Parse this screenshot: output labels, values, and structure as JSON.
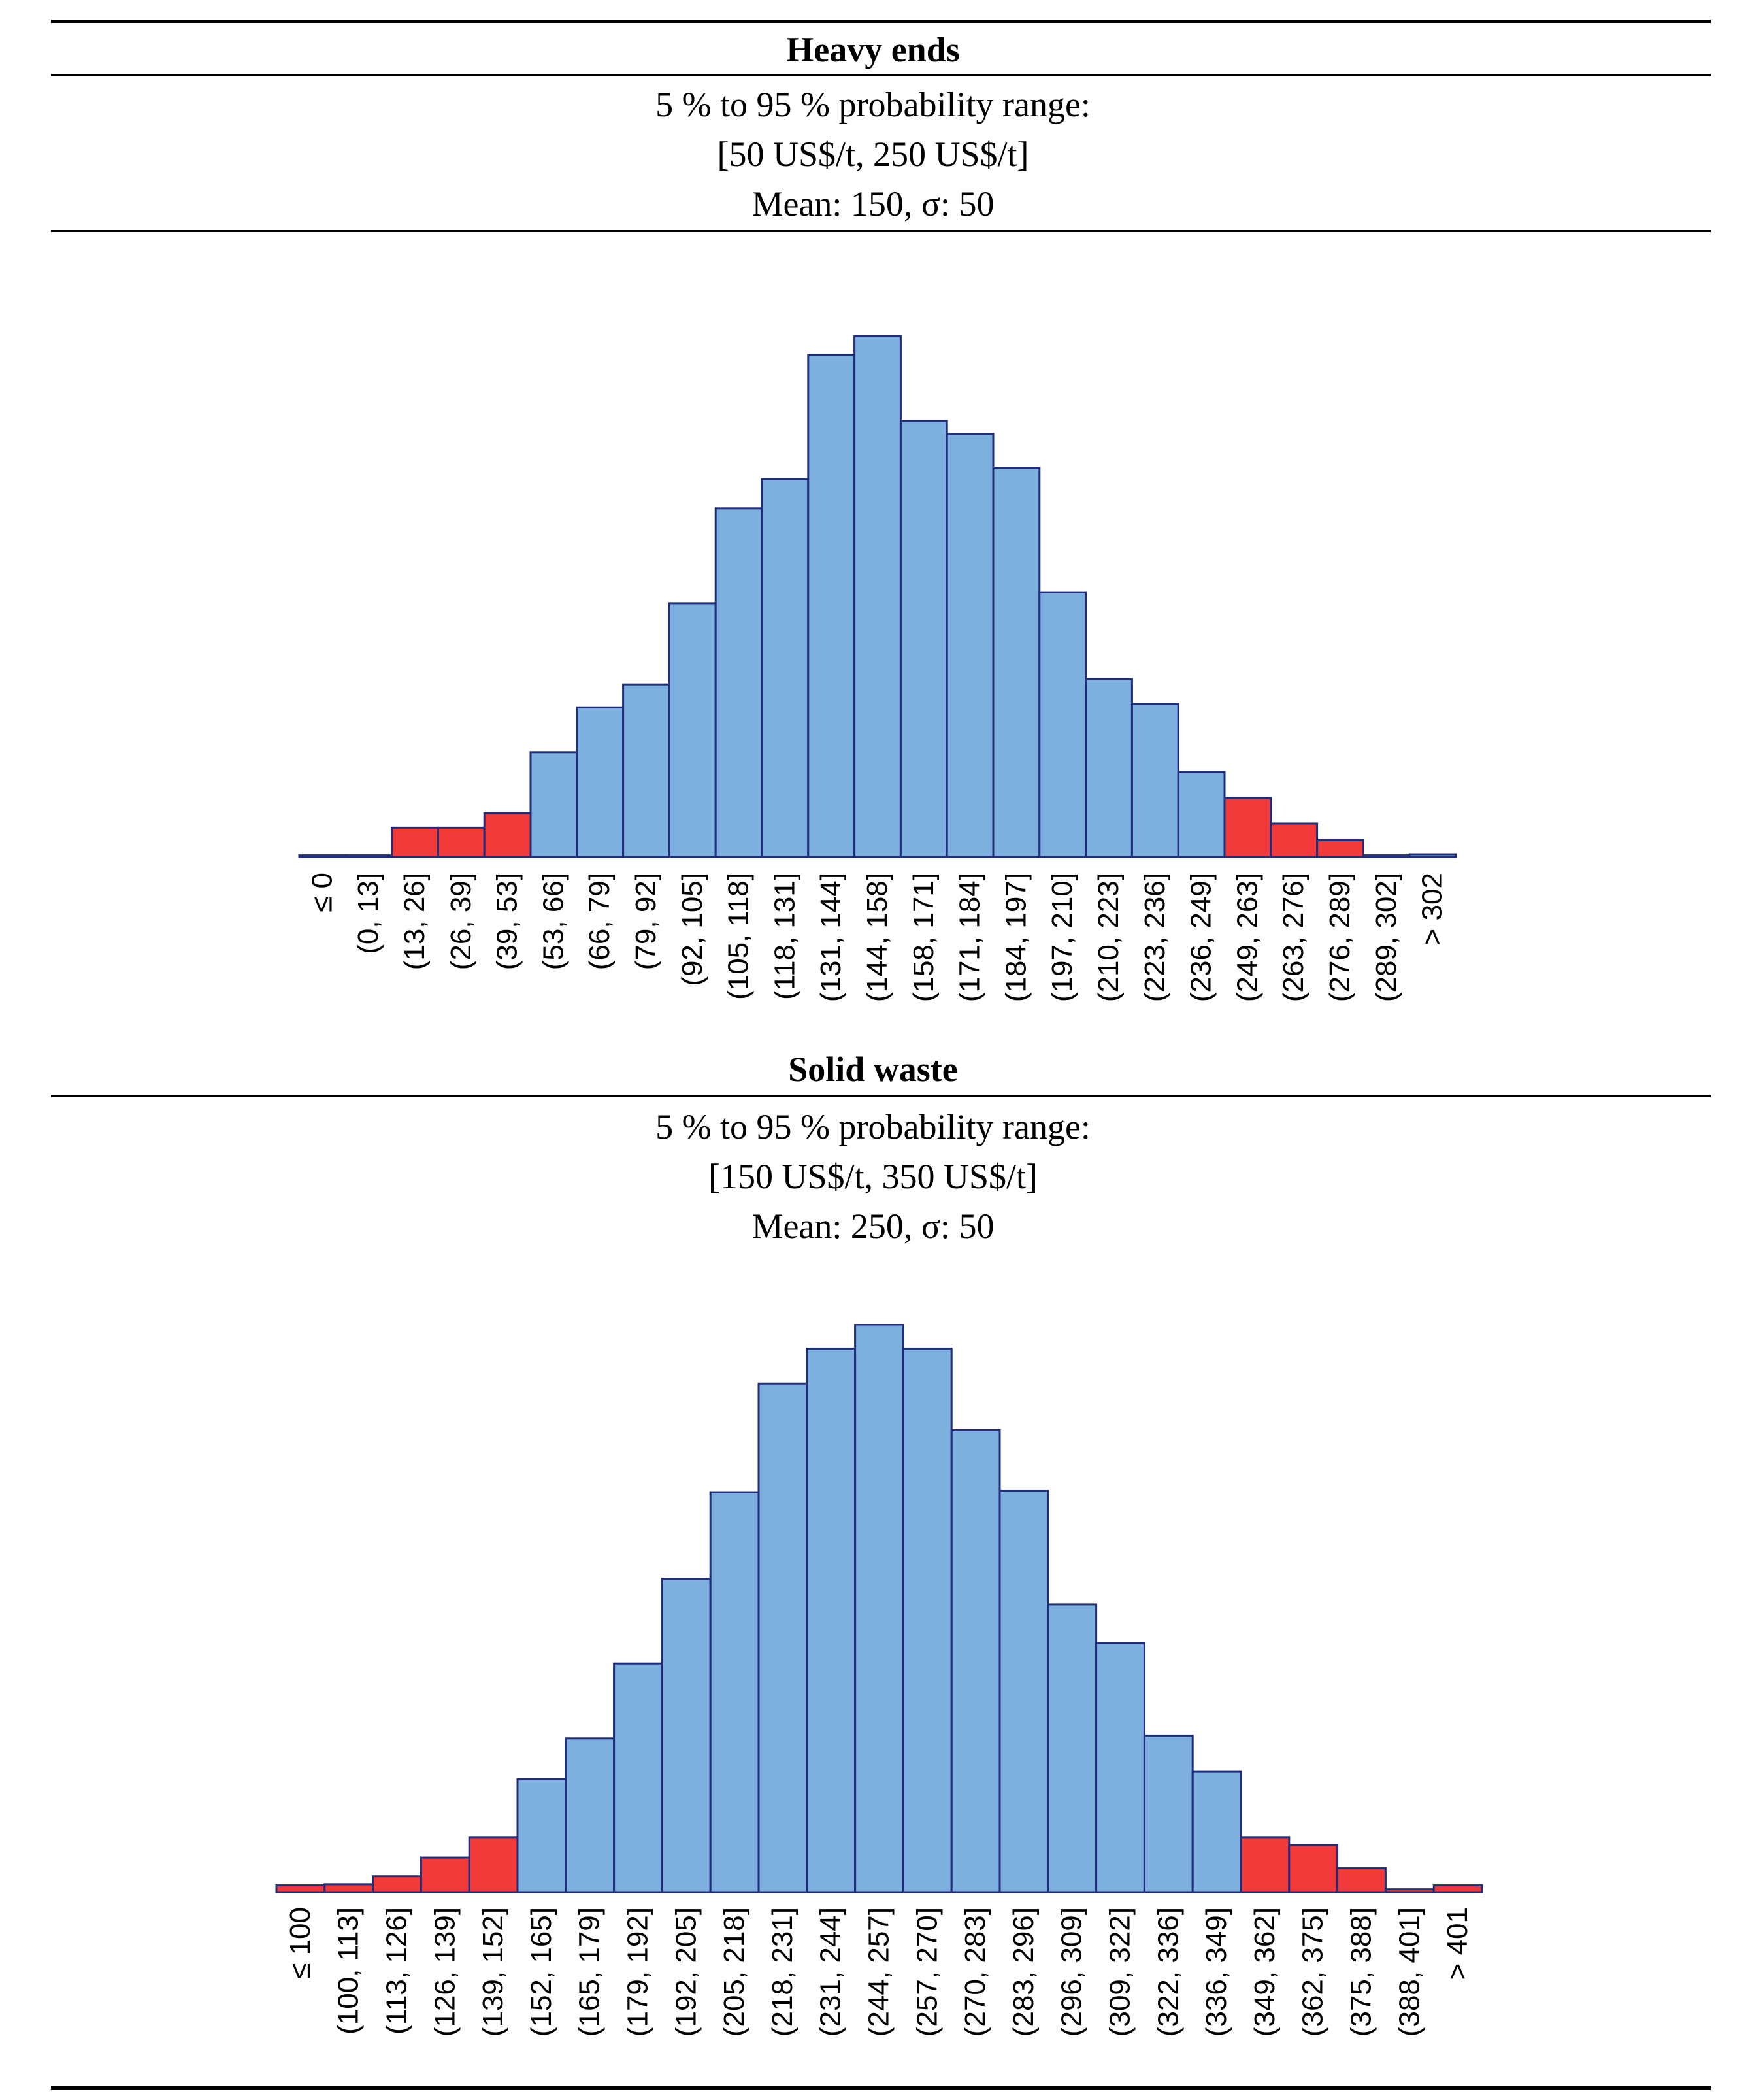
{
  "colors": {
    "inside": "#7eb0df",
    "tail": "#f23a3a",
    "outline": "#1f2d7a"
  },
  "chart_data": [
    {
      "type": "bar",
      "title": "Heavy ends",
      "range_label": "5 % to 95 % probability range:",
      "range": "[50 US$/t, 250 US$/t]",
      "stats": "Mean: 150, σ: 50",
      "categories": [
        "≤ 0",
        "(0, 13]",
        "(13, 26]",
        "(26, 39]",
        "(39, 53]",
        "(53, 66]",
        "(66, 79]",
        "(79, 92]",
        "(92, 105]",
        "(105, 118]",
        "(118, 131]",
        "(131, 144]",
        "(144, 158]",
        "(158, 171]",
        "(171, 184]",
        "(184, 197]",
        "(197, 210]",
        "(210, 223]",
        "(223, 236]",
        "(236, 249]",
        "(249, 263]",
        "(263, 276]",
        "(276, 289]",
        "(289, 302]",
        "> 302"
      ],
      "values": [
        0.3,
        0.3,
        5.6,
        5.6,
        8.4,
        20.1,
        28.7,
        33.1,
        48.7,
        66.9,
        72.5,
        96.4,
        100,
        83.7,
        81.2,
        74.7,
        50.8,
        34.1,
        29.4,
        16.3,
        11.3,
        6.4,
        3.2,
        0.3,
        0.5
      ],
      "tail": [
        true,
        true,
        true,
        true,
        true,
        false,
        false,
        false,
        false,
        false,
        false,
        false,
        false,
        false,
        false,
        false,
        false,
        false,
        false,
        false,
        true,
        true,
        true,
        true,
        false
      ],
      "ylim": [
        0,
        100
      ]
    },
    {
      "type": "bar",
      "title": "Solid waste",
      "range_label": "5 % to 95 % probability range:",
      "range": "[150 US$/t, 350 US$/t]",
      "stats": "Mean: 250, σ: 50",
      "categories": [
        "≤ 100",
        "(100, 113]",
        "(113, 126]",
        "(126, 139]",
        "(139, 152]",
        "(152, 165]",
        "(165, 179]",
        "(179, 192]",
        "(192, 205]",
        "(205, 218]",
        "(218, 231]",
        "(231, 244]",
        "(244, 257]",
        "(257, 270]",
        "(270, 283]",
        "(283, 296]",
        "(296, 309]",
        "(309, 322]",
        "(322, 336]",
        "(336, 349]",
        "(349, 362]",
        "(362, 375]",
        "(375, 388]",
        "(388, 401]",
        "> 401"
      ],
      "values": [
        1.2,
        1.4,
        2.8,
        6.1,
        9.7,
        19.9,
        27.1,
        40.3,
        55.2,
        70.5,
        89.6,
        95.8,
        100,
        95.8,
        81.4,
        70.8,
        50.7,
        43.9,
        27.6,
        21.3,
        9.7,
        8.3,
        4.2,
        0.5,
        1.2
      ],
      "tail": [
        true,
        true,
        true,
        true,
        true,
        false,
        false,
        false,
        false,
        false,
        false,
        false,
        false,
        false,
        false,
        false,
        false,
        false,
        false,
        false,
        true,
        true,
        true,
        true,
        true
      ],
      "ylim": [
        0,
        100
      ]
    }
  ]
}
